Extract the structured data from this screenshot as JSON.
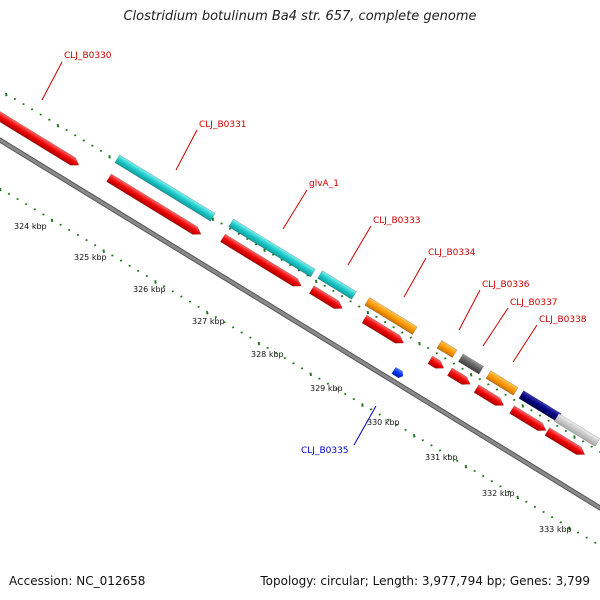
{
  "title": "Clostridium botulinum Ba4 str. 657, complete genome",
  "footer": {
    "accession": "Accession: NC_012658",
    "topology": "Topology: circular; Length: 3,977,794 bp; Genes: 3,799"
  },
  "colors": {
    "backbone": "#8a8a8a",
    "tick": "#1f7a1f",
    "label_red": "#cc0000",
    "label_blue": "#0000cc",
    "red_gene": "#ee0000",
    "cyan_gene": "#1cc8c8",
    "orange_gene": "#ff9a00",
    "darkgray_gene": "#606060",
    "navy_gene": "#000080",
    "lightgray_gene": "#c8c8c8",
    "blue_gene": "#0033ee"
  },
  "scale_labels": [
    "324 kbp",
    "325 kbp",
    "326 kbp",
    "327 kbp",
    "328 kbp",
    "329 kbp",
    "330 kbp",
    "331 kbp",
    "332 kbp",
    "333 kbp"
  ],
  "gene_labels": [
    {
      "id": "cljb0330",
      "text": "CLJ_B0330",
      "color": "red"
    },
    {
      "id": "cljb0331",
      "text": "CLJ_B0331",
      "color": "red"
    },
    {
      "id": "glva1",
      "text": "glvA_1",
      "color": "red"
    },
    {
      "id": "cljb0333",
      "text": "CLJ_B0333",
      "color": "red"
    },
    {
      "id": "cljb0334",
      "text": "CLJ_B0334",
      "color": "red"
    },
    {
      "id": "cljb0336",
      "text": "CLJ_B0336",
      "color": "red"
    },
    {
      "id": "cljb0337",
      "text": "CLJ_B0337",
      "color": "red"
    },
    {
      "id": "cljb0338",
      "text": "CLJ_B0338",
      "color": "red"
    },
    {
      "id": "cljb0335",
      "text": "CLJ_B0335",
      "color": "blue"
    }
  ]
}
